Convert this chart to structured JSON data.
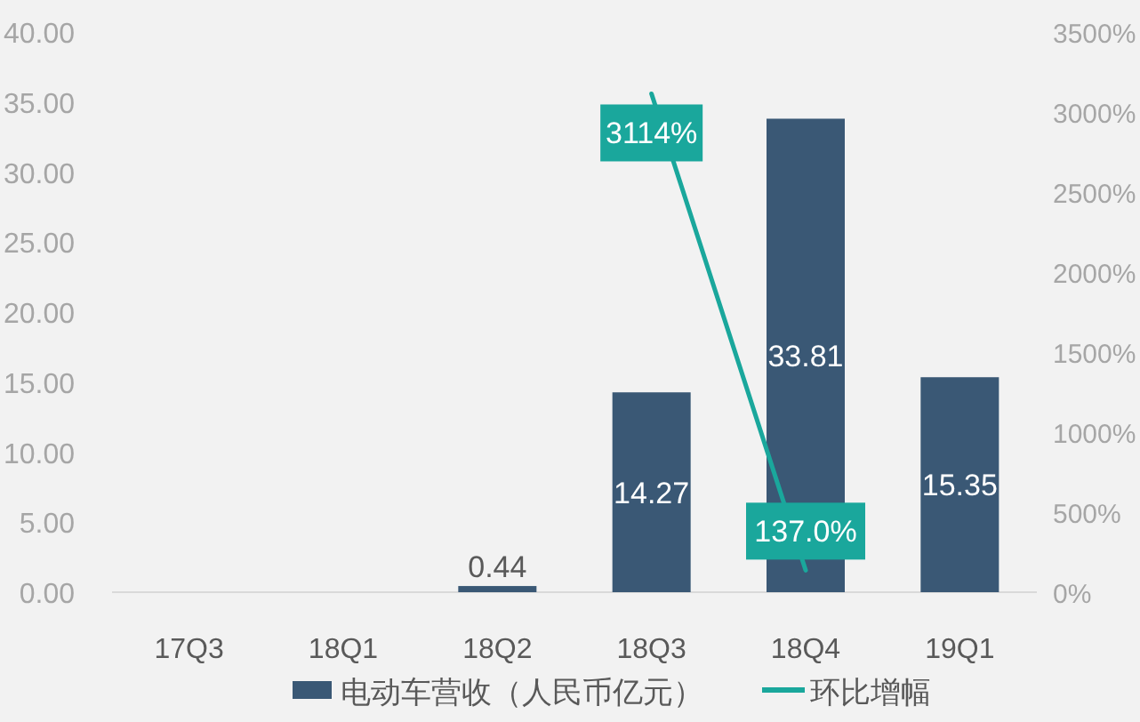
{
  "chart_data": {
    "type": "bar",
    "categories": [
      "17Q3",
      "18Q1",
      "18Q2",
      "18Q3",
      "18Q4",
      "19Q1"
    ],
    "series": [
      {
        "name": "电动车营收（人民币亿元）",
        "color": "#3a5875",
        "values": [
          null,
          null,
          0.44,
          14.27,
          33.81,
          15.35
        ],
        "value_labels": [
          null,
          null,
          "0.44",
          "14.27",
          "33.81",
          "15.35"
        ]
      },
      {
        "name": "环比增幅",
        "type": "line",
        "axis": "y2",
        "color": "#1aa79c",
        "values": [
          null,
          null,
          null,
          3114,
          137.0,
          null
        ],
        "value_labels": [
          null,
          null,
          null,
          "3114%",
          "137.0%",
          null
        ]
      }
    ],
    "ylim": [
      0,
      40
    ],
    "yticks": [
      {
        "value": 0,
        "label": "0.00"
      },
      {
        "value": 5,
        "label": "5.00"
      },
      {
        "value": 10,
        "label": "10.00"
      },
      {
        "value": 15,
        "label": "15.00"
      },
      {
        "value": 20,
        "label": "20.00"
      },
      {
        "value": 25,
        "label": "25.00"
      },
      {
        "value": 30,
        "label": "30.00"
      },
      {
        "value": 35,
        "label": "35.00"
      },
      {
        "value": 40,
        "label": "40.00"
      }
    ],
    "y2lim": [
      0,
      3500
    ],
    "y2ticks": [
      {
        "value": 0,
        "label": "0%"
      },
      {
        "value": 500,
        "label": "500%"
      },
      {
        "value": 1000,
        "label": "1000%"
      },
      {
        "value": 1500,
        "label": "1500%"
      },
      {
        "value": 2000,
        "label": "2000%"
      },
      {
        "value": 2500,
        "label": "2500%"
      },
      {
        "value": 3000,
        "label": "3000%"
      },
      {
        "value": 3500,
        "label": "3500%"
      }
    ],
    "grid": false,
    "legend": "bottom"
  }
}
